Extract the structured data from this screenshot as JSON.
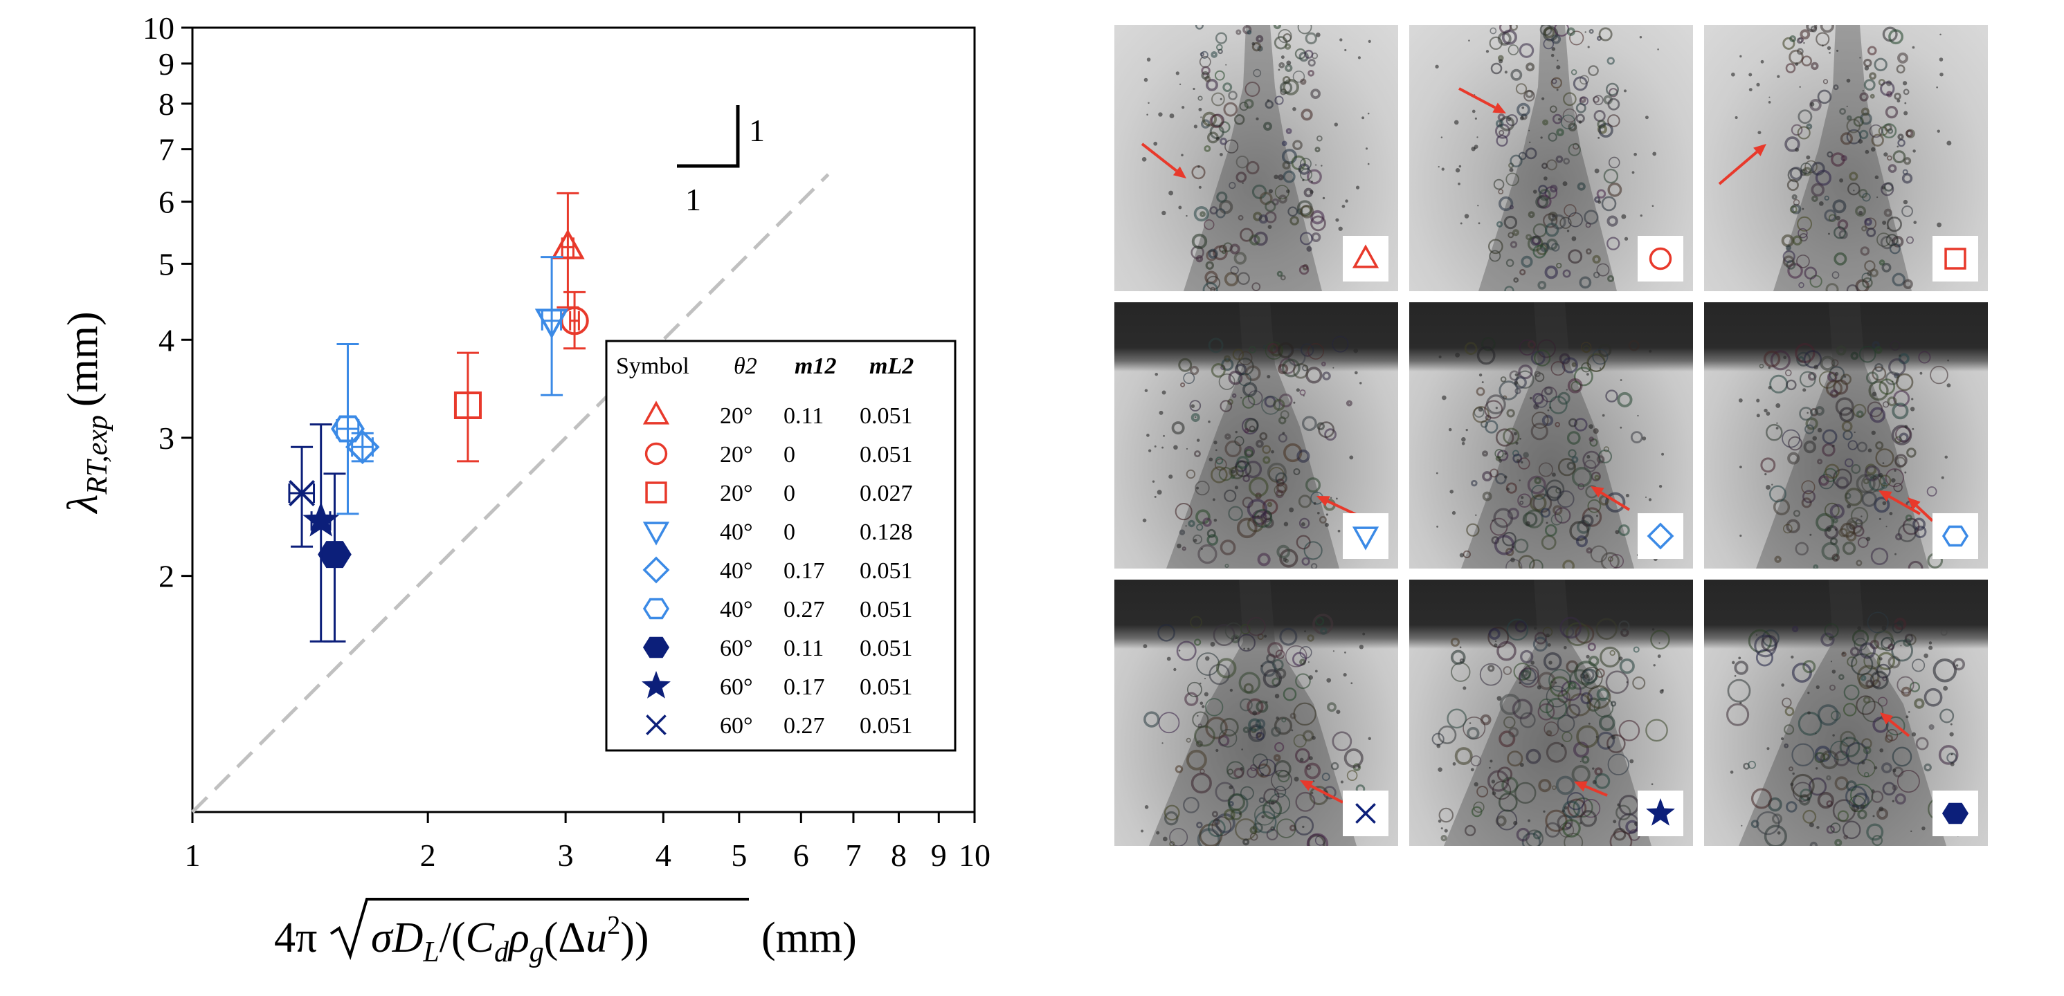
{
  "chart_data": {
    "type": "scatter",
    "xscale": "log",
    "yscale": "log",
    "xlim": [
      1,
      10
    ],
    "ylim": [
      1,
      10
    ],
    "x_ticks": [
      1,
      2,
      3,
      4,
      5,
      6,
      7,
      8,
      9,
      10
    ],
    "y_ticks": [
      2,
      3,
      4,
      5,
      6,
      7,
      8,
      9,
      10
    ],
    "x_tick_labels": [
      "1",
      "2",
      "3",
      "4",
      "5",
      "6",
      "7",
      "8",
      "9",
      "10"
    ],
    "y_tick_labels": [
      "2",
      "3",
      "4",
      "5",
      "6",
      "7",
      "8",
      "9",
      "10"
    ],
    "xlabel_prefix": "4π",
    "xlabel_unit": "(mm)",
    "ylabel_unit": "(mm)",
    "reference_line": {
      "slope": 1,
      "style": "dashed",
      "color": "#c0c0c0"
    },
    "slope_triangle": {
      "rise_label": "1",
      "run_label": "1"
    },
    "legend": {
      "placement": "center-right",
      "headers": [
        "Symbol",
        "θ2",
        "m12",
        "mL2"
      ],
      "rows": [
        {
          "theta": "20°",
          "m12": "0.11",
          "mL2": "0.051"
        },
        {
          "theta": "20°",
          "m12": "0",
          "mL2": "0.051"
        },
        {
          "theta": "20°",
          "m12": "0",
          "mL2": "0.027"
        },
        {
          "theta": "40°",
          "m12": "0",
          "mL2": "0.128"
        },
        {
          "theta": "40°",
          "m12": "0.17",
          "mL2": "0.051"
        },
        {
          "theta": "40°",
          "m12": "0.27",
          "mL2": "0.051"
        },
        {
          "theta": "60°",
          "m12": "0.11",
          "mL2": "0.051"
        },
        {
          "theta": "60°",
          "m12": "0.17",
          "mL2": "0.051"
        },
        {
          "theta": "60°",
          "m12": "0.27",
          "mL2": "0.051"
        }
      ]
    },
    "series": [
      {
        "marker": "triangle-up",
        "color": "#e8392b",
        "filled": false,
        "x": 3.02,
        "y": 5.25,
        "y_err": [
          4.4,
          6.15
        ],
        "x_err": [
          2.97,
          3.07
        ]
      },
      {
        "marker": "circle",
        "color": "#e8392b",
        "filled": false,
        "x": 3.08,
        "y": 4.23,
        "y_err": [
          3.9,
          4.6
        ],
        "x_err": [
          3.04,
          3.12
        ]
      },
      {
        "marker": "square",
        "color": "#e8392b",
        "filled": false,
        "x": 2.25,
        "y": 3.3,
        "y_err": [
          2.8,
          3.85
        ],
        "x_err": null
      },
      {
        "marker": "triangle-down",
        "color": "#3b8ae6",
        "filled": false,
        "x": 2.88,
        "y": 4.23,
        "y_err": [
          3.4,
          5.1
        ],
        "x_err": [
          2.8,
          2.96
        ]
      },
      {
        "marker": "diamond",
        "color": "#3b8ae6",
        "filled": false,
        "x": 1.65,
        "y": 2.92,
        "y_err": [
          2.8,
          3.04
        ],
        "x_err": [
          1.6,
          1.7
        ]
      },
      {
        "marker": "hexagon",
        "color": "#3b8ae6",
        "filled": false,
        "x": 1.58,
        "y": 3.08,
        "y_err": [
          2.4,
          3.95
        ],
        "x_err": [
          1.53,
          1.63
        ]
      },
      {
        "marker": "hexagon",
        "color": "#0c1f7a",
        "filled": true,
        "x": 1.52,
        "y": 2.13,
        "y_err": [
          1.65,
          2.7
        ],
        "x_err": null
      },
      {
        "marker": "star",
        "color": "#0c1f7a",
        "filled": true,
        "x": 1.46,
        "y": 2.35,
        "y_err": [
          1.65,
          3.12
        ],
        "x_err": [
          1.42,
          1.5
        ]
      },
      {
        "marker": "x",
        "color": "#0c1f7a",
        "filled": false,
        "x": 1.38,
        "y": 2.55,
        "y_err": [
          2.18,
          2.92
        ],
        "x_err": [
          1.33,
          1.43
        ]
      }
    ]
  },
  "photo_panel": {
    "rows": 3,
    "cols": 3,
    "tiles": [
      {
        "marker": "triangle-up",
        "color": "#e8392b",
        "filled": false,
        "plate": false
      },
      {
        "marker": "circle",
        "color": "#e8392b",
        "filled": false,
        "plate": false
      },
      {
        "marker": "square",
        "color": "#e8392b",
        "filled": false,
        "plate": false
      },
      {
        "marker": "triangle-down",
        "color": "#3b8ae6",
        "filled": false,
        "plate": true
      },
      {
        "marker": "diamond",
        "color": "#3b8ae6",
        "filled": false,
        "plate": true
      },
      {
        "marker": "hexagon",
        "color": "#3b8ae6",
        "filled": false,
        "plate": true
      },
      {
        "marker": "x",
        "color": "#0c1f7a",
        "filled": false,
        "plate": true
      },
      {
        "marker": "star",
        "color": "#0c1f7a",
        "filled": true,
        "plate": true
      },
      {
        "marker": "hexagon",
        "color": "#0c1f7a",
        "filled": true,
        "plate": true
      }
    ],
    "arrow_color": "#e8392b"
  }
}
